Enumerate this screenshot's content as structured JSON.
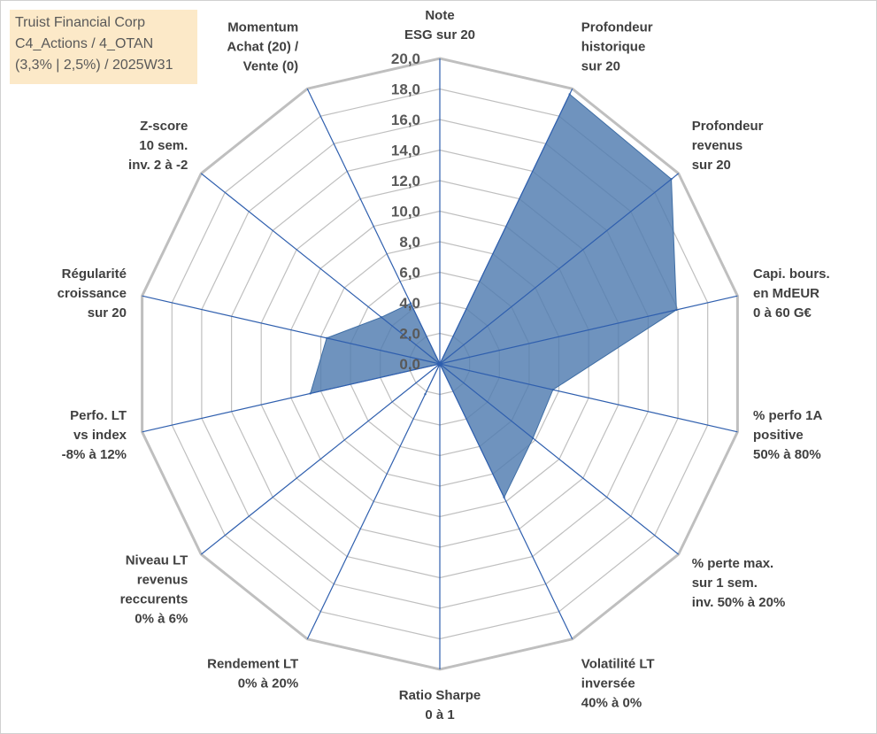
{
  "title_box": {
    "line1": "Truist Financial Corp",
    "line2": "C4_Actions / 4_OTAN",
    "line3": "(3,3% | 2,5%) / 2025W31"
  },
  "chart_data": {
    "type": "radar",
    "title": "Truist Financial Corp C4_Actions / 4_OTAN (3,3% | 2,5%) / 2025W31",
    "range": [
      0,
      20
    ],
    "tick_step": 2,
    "tick_labels": [
      "0,0",
      "2,0",
      "4,0",
      "6,0",
      "8,0",
      "10,0",
      "12,0",
      "14,0",
      "16,0",
      "18,0",
      "20,0"
    ],
    "grid": true,
    "fill_color": "#4f7bb0",
    "axis_color": "#2f5fae",
    "grid_color": "#bfbfbf",
    "axes": [
      {
        "label": [
          "Note",
          "ESG sur 20"
        ],
        "value": 0.0
      },
      {
        "label": [
          "Profondeur",
          "historique",
          "sur 20"
        ],
        "value": 19.6
      },
      {
        "label": [
          "Profondeur",
          "revenus",
          "sur 20"
        ],
        "value": 19.4
      },
      {
        "label": [
          "Capi. bours.",
          "en MdEUR",
          "0 à 60 G€"
        ],
        "value": 15.9
      },
      {
        "label": [
          "% perfo 1A",
          "positive",
          "50% à 80%"
        ],
        "value": 7.6
      },
      {
        "label": [
          "% perte max.",
          "sur 1 sem.",
          "inv. 50% à 20%"
        ],
        "value": 7.8
      },
      {
        "label": [
          "Volatilité LT",
          "inversée",
          "40% à 0%"
        ],
        "value": 9.7
      },
      {
        "label": [
          "Ratio Sharpe",
          "0 à 1"
        ],
        "value": 0.0
      },
      {
        "label": [
          "Rendement LT",
          "0% à 20%"
        ],
        "value": 2.2
      },
      {
        "label": [
          "Niveau LT",
          "revenus",
          "reccurents",
          "0% à 6%"
        ],
        "value": 0.0
      },
      {
        "label": [
          "Perfo. LT",
          "vs index",
          "-8% à 12%"
        ],
        "value": 8.7
      },
      {
        "label": [
          "Régularité",
          "croissance",
          "sur 20"
        ],
        "value": 7.6
      },
      {
        "label": [
          "Z-score",
          "10 sem.",
          "inv. 2 à -2"
        ],
        "value": 4.9
      },
      {
        "label": [
          "Momentum",
          "Achat (20) /",
          "Vente (0)"
        ],
        "value": 4.4
      }
    ]
  }
}
